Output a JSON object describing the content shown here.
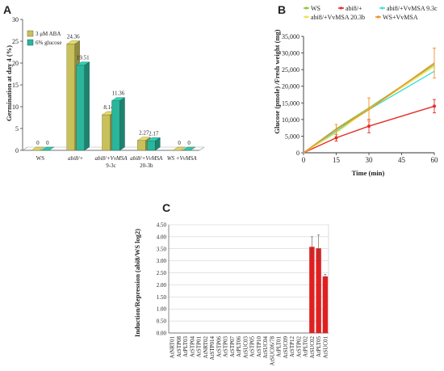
{
  "panel_labels": {
    "a": "A",
    "b": "B",
    "c": "C"
  },
  "chart_data": [
    {
      "id": "A",
      "type": "bar",
      "title": "",
      "ylabel": "Germination at day 4 (%)",
      "ylim": [
        0,
        30
      ],
      "yticks": [
        0,
        5,
        10,
        15,
        20,
        25,
        30
      ],
      "grid": false,
      "legend_position": "top-left",
      "categories": [
        {
          "line1": "WS",
          "line2": "",
          "italic": false
        },
        {
          "line1": "abi8/+",
          "line2": "",
          "italic": true
        },
        {
          "line1": "abi8/+VvMSA",
          "line2": "9-3c",
          "italic": true
        },
        {
          "line1": "abi8/+VvMSA",
          "line2": "20-3b",
          "italic": true
        },
        {
          "line1": "WS +VvMSA",
          "line2": "",
          "italic": true
        }
      ],
      "series": [
        {
          "name": "3 μM ABA",
          "color": "#c8c05a",
          "values": [
            0,
            24.36,
            8.14,
            2.27,
            0
          ],
          "labels": [
            "0",
            "24.36",
            "8.14",
            "2.27",
            "0"
          ]
        },
        {
          "name": "6% glucose",
          "color": "#2bb59a",
          "values": [
            0,
            19.51,
            11.36,
            2.17,
            0
          ],
          "labels": [
            "0",
            "19.51",
            "11.36",
            "2.17",
            "0"
          ]
        }
      ]
    },
    {
      "id": "B",
      "type": "line",
      "title": "",
      "xlabel": "Time (min)",
      "ylabel": "Glucose (pmole) /Fresh weight (mg)",
      "xlim": [
        0,
        60
      ],
      "ylim": [
        0,
        35000
      ],
      "xticks": [
        0,
        15,
        30,
        45,
        60
      ],
      "yticks": [
        0,
        5000,
        10000,
        15000,
        20000,
        25000,
        30000,
        35000
      ],
      "ytick_labels": [
        "0",
        "5,000",
        "10,000",
        "15,000",
        "20,000",
        "25,000",
        "30,000",
        "35,000"
      ],
      "grid": false,
      "legend_position": "top",
      "series": [
        {
          "name": "WS",
          "color": "#8cc63f",
          "marker": "none",
          "x": [
            0,
            15,
            30,
            60
          ],
          "y": [
            0,
            7200,
            13500,
            26500
          ],
          "err": [
            0,
            0,
            0,
            0
          ]
        },
        {
          "name": "abi8/+",
          "color": "#e52d27",
          "marker": "circle",
          "x": [
            0,
            15,
            30,
            60
          ],
          "y": [
            0,
            4500,
            8000,
            14000
          ],
          "err": [
            0,
            1000,
            2000,
            2000
          ]
        },
        {
          "name": "abi8/+VvMSA 9.3c",
          "color": "#3ee0d0",
          "marker": "none",
          "x": [
            0,
            15,
            30,
            60
          ],
          "y": [
            0,
            6500,
            13000,
            24500
          ],
          "err": [
            0,
            0,
            0,
            0
          ]
        },
        {
          "name": "abi8/+VvMSA 20.3b",
          "color": "#f2e24c",
          "marker": "none",
          "x": [
            0,
            15,
            30,
            60
          ],
          "y": [
            0,
            6000,
            13200,
            26000
          ],
          "err": [
            0,
            0,
            0,
            0
          ]
        },
        {
          "name": "WS+VvMSA",
          "color": "#f0902a",
          "marker": "none",
          "x": [
            0,
            15,
            30,
            60
          ],
          "y": [
            0,
            7000,
            13000,
            27000
          ],
          "err": [
            0,
            1500,
            3500,
            4500
          ]
        }
      ]
    },
    {
      "id": "C",
      "type": "bar",
      "title": "",
      "ylabel": "Induction/Repression (abi8/WS log2)",
      "ylim": [
        0,
        4.5
      ],
      "yticks": [
        0,
        0.5,
        1,
        1.5,
        2,
        2.5,
        3,
        3.5,
        4,
        4.5
      ],
      "ytick_labels": [
        "0.00",
        "0.50",
        "1.00",
        "1.50",
        "2.00",
        "2.50",
        "3.00",
        "3.50",
        "4.00",
        "4.50"
      ],
      "grid": true,
      "categories": [
        "AtNRT01",
        "AtSTP08",
        "AtPLT03",
        "AtSTP04",
        "AtSTP01",
        "AtNRT02",
        "AtSTP014",
        "AtSTP06",
        "AtSTP03",
        "AtSTP07",
        "AtPLT06",
        "AtSUC03",
        "AtSTP05",
        "AtSTP10",
        "AtSUC04",
        "AtSUC06/78",
        "AtPLT01",
        "AtSUC09",
        "AtSTP12",
        "AtSTP02",
        "AtPLT02",
        "AtSUC02",
        "AtPLT05",
        "AtSUC01"
      ],
      "values": [
        0,
        0,
        0,
        0,
        0,
        0,
        0,
        0,
        0,
        0,
        0,
        0,
        0,
        0,
        0,
        0,
        0,
        0,
        0,
        0,
        0,
        3.58,
        3.52,
        2.35
      ],
      "errors": [
        0,
        0,
        0,
        0,
        0,
        0,
        0,
        0,
        0,
        0,
        0,
        0,
        0,
        0,
        0,
        0,
        0,
        0,
        0,
        0,
        0,
        0.42,
        0.55,
        0.08
      ],
      "color": "#e02020"
    }
  ]
}
